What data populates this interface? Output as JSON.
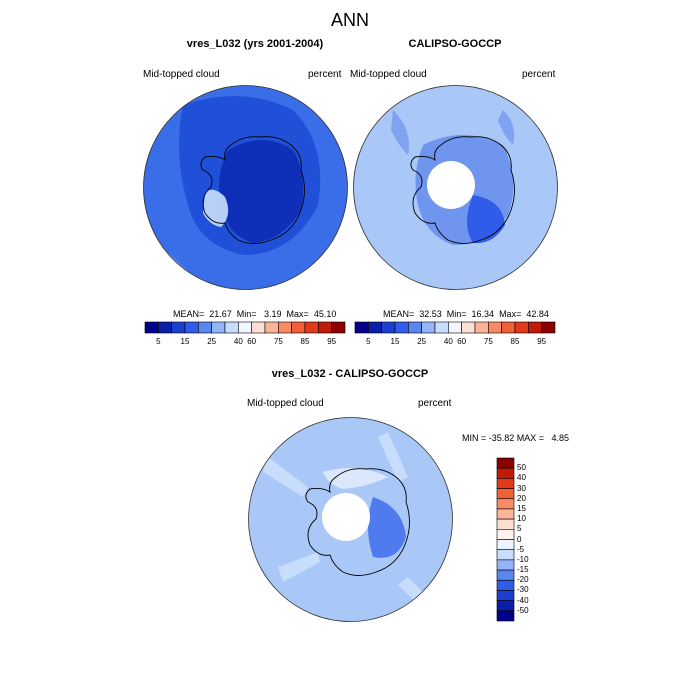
{
  "figure": {
    "title": "ANN"
  },
  "colors": {
    "background": "#ffffff",
    "hole": "#ffffff",
    "continent_line": "#000000",
    "model_map_base": "#3a6de8",
    "obs_map_base": "#a9c7f7",
    "diff_map_base": "#a9c7f7"
  },
  "chart_data": [
    {
      "type": "heatmap",
      "panel_key": "model",
      "title": "vres_L032 (yrs 2001-2004)",
      "left_label": "Mid-topped cloud",
      "right_label": "percent",
      "projection": "south-polar-stereographic",
      "stats": {
        "mean": "21.67",
        "min": "3.19",
        "max": "45.10"
      },
      "stats_text": "MEAN=  21.67  Min=   3.19  Max=  45.10",
      "colorbar": {
        "orientation": "horizontal",
        "levels": [
          "5",
          "15",
          "25",
          "40",
          "60",
          "75",
          "85",
          "95"
        ],
        "colors": [
          "#00008b",
          "#0a1fa8",
          "#1d3fd0",
          "#2f5ce8",
          "#5a86f0",
          "#93b5f8",
          "#c8dcfc",
          "#f2f6ff",
          "#fde0d2",
          "#fbb39a",
          "#f88a66",
          "#f0603a",
          "#e03a1a",
          "#c01a08",
          "#8b0000"
        ]
      }
    },
    {
      "type": "heatmap",
      "panel_key": "obs",
      "title": "CALIPSO-GOCCP",
      "left_label": "Mid-topped cloud",
      "right_label": "percent",
      "projection": "south-polar-stereographic",
      "stats": {
        "mean": "32.53",
        "min": "16.34",
        "max": "42.84"
      },
      "stats_text": "MEAN=  32.53  Min=  16.34  Max=  42.84",
      "colorbar": {
        "orientation": "horizontal",
        "levels": [
          "5",
          "15",
          "25",
          "40",
          "60",
          "75",
          "85",
          "95"
        ],
        "colors": [
          "#00008b",
          "#0a1fa8",
          "#1d3fd0",
          "#2f5ce8",
          "#5a86f0",
          "#93b5f8",
          "#c8dcfc",
          "#f2f6ff",
          "#fde0d2",
          "#fbb39a",
          "#f88a66",
          "#f0603a",
          "#e03a1a",
          "#c01a08",
          "#8b0000"
        ]
      }
    },
    {
      "type": "heatmap",
      "panel_key": "diff",
      "title": "vres_L032 - CALIPSO-GOCCP",
      "left_label": "Mid-topped cloud",
      "right_label": "percent",
      "projection": "south-polar-stereographic",
      "stats": {
        "min": "-35.82",
        "max": "4.85"
      },
      "stats_text": "MIN = -35.82 MAX =   4.85",
      "colorbar": {
        "orientation": "vertical",
        "levels": [
          "50",
          "40",
          "30",
          "20",
          "15",
          "10",
          "5",
          "0",
          "-5",
          "-10",
          "-15",
          "-20",
          "-30",
          "-40",
          "-50"
        ],
        "colors": [
          "#8b0000",
          "#c01a08",
          "#e03a1a",
          "#f0603a",
          "#f88a66",
          "#fbb39a",
          "#fde0d2",
          "#fef3ec",
          "#eef4ff",
          "#c8dcfc",
          "#93b5f8",
          "#5a86f0",
          "#2f5ce8",
          "#1d3fd0",
          "#0a1fa8",
          "#00008b"
        ]
      }
    }
  ]
}
